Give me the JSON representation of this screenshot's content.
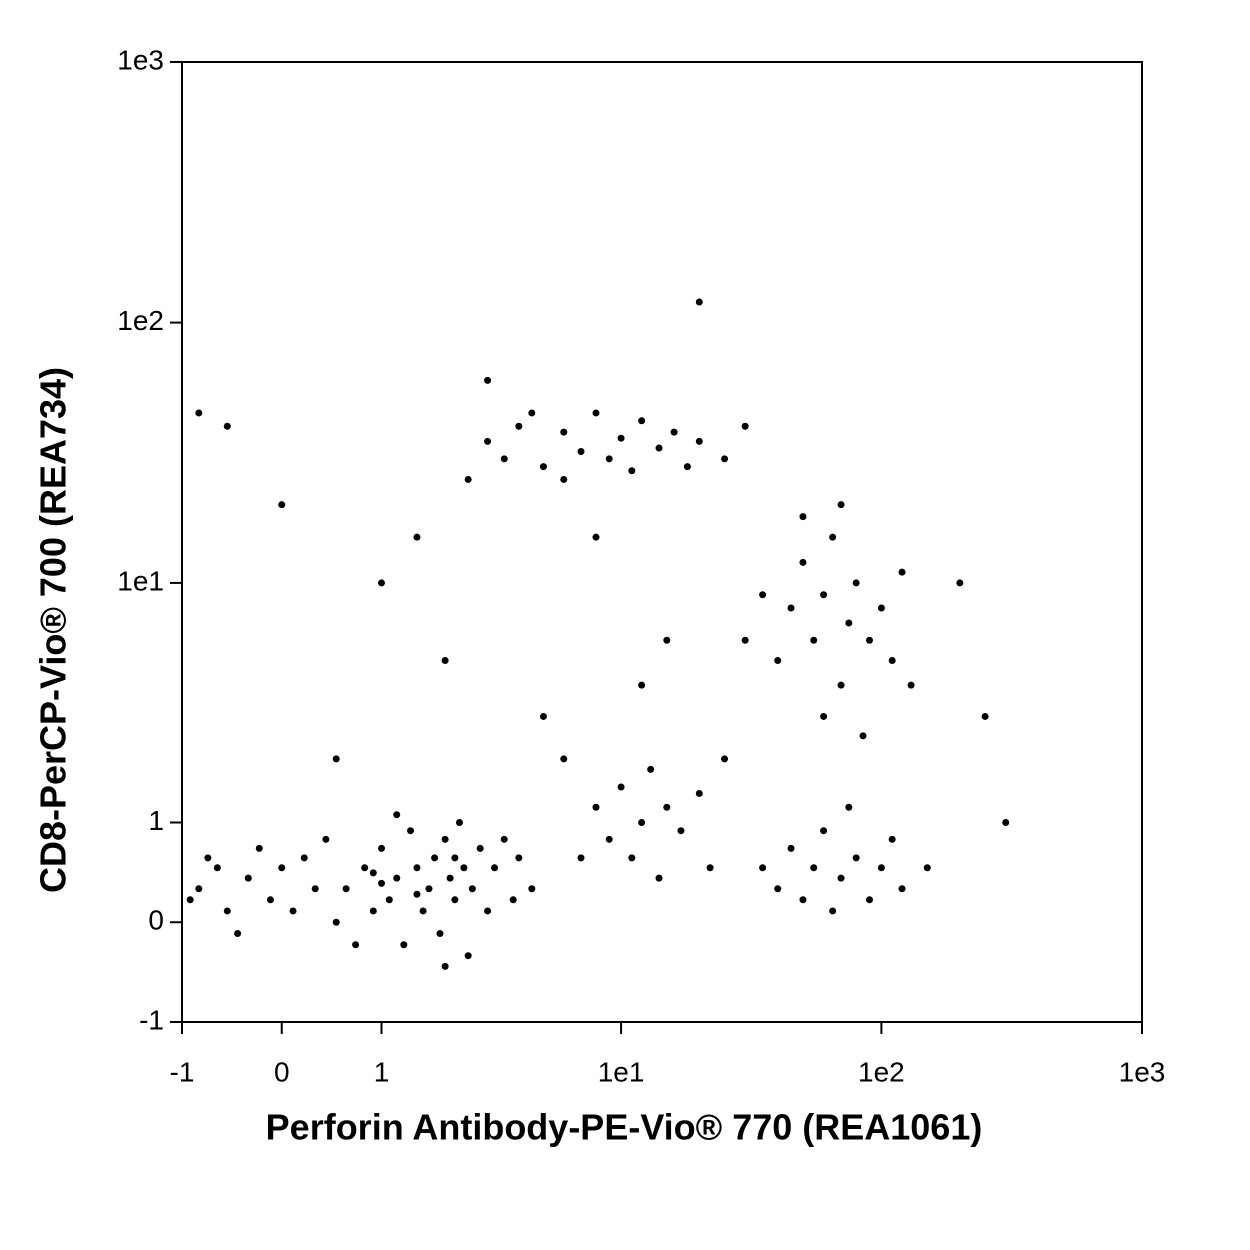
{
  "chart_data": {
    "type": "scatter",
    "x_label": "Perforin Antibody-PE-Vio® 770 (REA1061)",
    "y_label": "CD8-PerCP-Vio® 700 (REA734)",
    "scale": "asinh",
    "color": "#000000",
    "xlim": [
      -1,
      1000
    ],
    "ylim": [
      -1,
      1000
    ],
    "xticks": [
      -1,
      0,
      1,
      {
        "value": 10,
        "label": "1e1"
      },
      {
        "value": 100,
        "label": "1e2"
      },
      {
        "value": 1000,
        "label": "1e3"
      }
    ],
    "yticks": [
      -1,
      0,
      1,
      {
        "value": 10,
        "label": "1e1"
      },
      {
        "value": 100,
        "label": "1e2"
      },
      {
        "value": 1000,
        "label": "1e3"
      }
    ],
    "x": [
      -0.8,
      -0.6,
      -0.5,
      -0.3,
      -0.2,
      -0.1,
      0,
      0.1,
      0.2,
      0.3,
      -0.7,
      -0.4,
      0.4,
      0.5,
      -0.9,
      0.6,
      0.8,
      0.9,
      1,
      1.1,
      1.2,
      1.3,
      1.4,
      1.5,
      1.6,
      1.7,
      1.8,
      1.9,
      2,
      2.1,
      2.2,
      2.3,
      2.4,
      2.5,
      2.6,
      2.8,
      3,
      3.2,
      3.5,
      3.8,
      4,
      4.5,
      0.7,
      1.2,
      2,
      1,
      1.5,
      2.2,
      0.9,
      8,
      9,
      10,
      11,
      12,
      13,
      14,
      15,
      17,
      20,
      22,
      7,
      25,
      40,
      45,
      50,
      55,
      60,
      65,
      70,
      80,
      90,
      100,
      110,
      35,
      75,
      120,
      40,
      45,
      50,
      55,
      60,
      65,
      70,
      75,
      80,
      90,
      100,
      110,
      120,
      35,
      30,
      130,
      60,
      85,
      70,
      50,
      2.5,
      3,
      3.5,
      4,
      5,
      6,
      7,
      8,
      9,
      10,
      12,
      14,
      16,
      18,
      20,
      25,
      30,
      4.5,
      6,
      11,
      0,
      -0.5,
      1,
      2,
      5,
      8,
      15,
      20,
      3,
      0.5,
      200,
      250,
      300,
      150,
      -0.8,
      6,
      12,
      1.5
    ],
    "y": [
      0.3,
      0.5,
      0.1,
      0.4,
      0.7,
      0.2,
      0.5,
      0.1,
      0.6,
      0.3,
      0.6,
      -0.1,
      0.8,
      0,
      0.2,
      0.3,
      0.5,
      0.1,
      0.7,
      0.2,
      0.4,
      -0.2,
      0.9,
      0.5,
      0.1,
      0.3,
      0.6,
      -0.1,
      0.8,
      0.4,
      0.2,
      1,
      0.5,
      -0.3,
      0.3,
      0.7,
      0.1,
      0.5,
      0.8,
      0.2,
      0.6,
      0.3,
      -0.2,
      1.1,
      -0.4,
      0.35,
      0.25,
      0.6,
      0.45,
      1.2,
      0.8,
      1.5,
      0.6,
      1,
      1.8,
      0.4,
      1.2,
      0.9,
      1.4,
      0.5,
      0.6,
      2,
      0.3,
      0.7,
      0.2,
      0.5,
      0.9,
      0.1,
      0.4,
      0.6,
      0.2,
      0.5,
      0.8,
      0.5,
      1.2,
      0.3,
      5,
      8,
      12,
      6,
      9,
      15,
      4,
      7,
      10,
      6,
      8,
      5,
      11,
      9,
      6,
      4,
      3,
      2.5,
      20,
      18,
      25,
      35,
      30,
      40,
      28,
      38,
      32,
      45,
      30,
      36,
      42,
      33,
      38,
      28,
      35,
      30,
      40,
      45,
      25,
      27,
      20,
      40,
      10,
      5,
      3,
      15,
      6,
      120,
      60,
      2,
      10,
      3,
      1,
      0.5,
      45,
      2,
      4,
      15
    ]
  }
}
